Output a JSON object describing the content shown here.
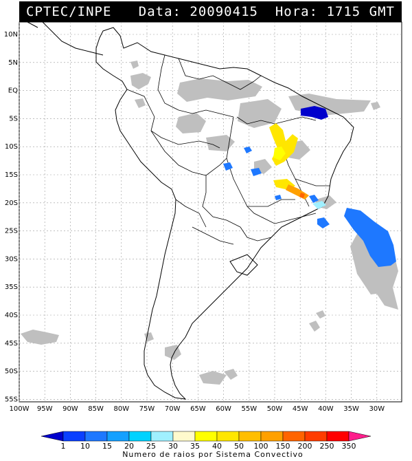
{
  "header": {
    "source": "CPTEC/INPE",
    "data_label": "Data: 20090415",
    "hora_label": "Hora: 1715 GMT"
  },
  "map": {
    "lat_labels": [
      "10N",
      "5N",
      "EQ",
      "5S",
      "10S",
      "15S",
      "20S",
      "25S",
      "30S",
      "35S",
      "40S",
      "45S",
      "50S",
      "55S"
    ],
    "lon_labels": [
      "100W",
      "95W",
      "90W",
      "85W",
      "80W",
      "75W",
      "70W",
      "65W",
      "60W",
      "55W",
      "50W",
      "45W",
      "40W",
      "35W",
      "30W"
    ],
    "grid": true,
    "cloud_color": "#bfbfbf"
  },
  "colorbar": {
    "ticks": [
      "1",
      "10",
      "15",
      "20",
      "25",
      "30",
      "35",
      "40",
      "50",
      "100",
      "150",
      "200",
      "250",
      "350"
    ],
    "colors": [
      "#0000cc",
      "#0a40ff",
      "#1e78ff",
      "#14a0ff",
      "#00d2ff",
      "#a0f0ff",
      "#fffacd",
      "#ffff00",
      "#ffe600",
      "#ffbe00",
      "#ffa000",
      "#ff6400",
      "#ff3c00",
      "#ff0000",
      "#ff1e8c"
    ],
    "title": "Numero de raios por Sistema Convectivo"
  }
}
